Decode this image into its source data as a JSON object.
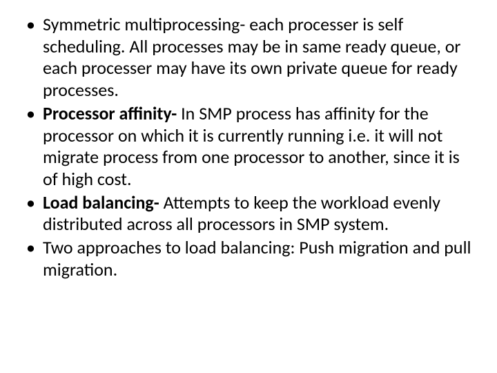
{
  "slide": {
    "background_color": "#ffffff",
    "text_color": "#000000",
    "font_family": "Calibri",
    "font_size_pt": 20,
    "bullets": [
      {
        "bold_prefix": "",
        "text": "Symmetric multiprocessing- each processer is self scheduling. All processes may be in same ready queue, or each processer may have its own private queue for ready processes."
      },
      {
        "bold_prefix": "Processor affinity- ",
        "text": "In SMP process has affinity for the processor on which it is currently running i.e. it will not migrate process from one processor to another, since it is of high cost."
      },
      {
        "bold_prefix": "Load balancing- ",
        "text": "Attempts to keep the workload evenly distributed across all processors in SMP system."
      },
      {
        "bold_prefix": "",
        "text": "Two approaches to load balancing: Push migration and pull migration."
      }
    ]
  }
}
